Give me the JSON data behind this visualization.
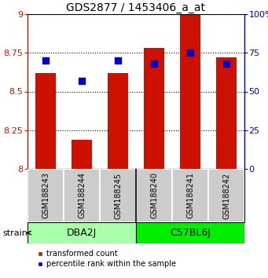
{
  "title": "GDS2877 / 1453406_a_at",
  "samples": [
    "GSM188243",
    "GSM188244",
    "GSM188245",
    "GSM188240",
    "GSM188241",
    "GSM188242"
  ],
  "transformed_counts": [
    8.62,
    8.19,
    8.62,
    8.78,
    9.0,
    8.72
  ],
  "percentile_ranks": [
    70,
    57,
    70,
    68,
    75,
    68
  ],
  "ylim_left": [
    8.0,
    9.0
  ],
  "ylim_right": [
    0,
    100
  ],
  "yticks_left": [
    8.0,
    8.25,
    8.5,
    8.75,
    9.0
  ],
  "yticks_right": [
    0,
    25,
    50,
    75,
    100
  ],
  "ytick_labels_left": [
    "8",
    "8.25",
    "8.5",
    "8.75",
    "9"
  ],
  "ytick_labels_right": [
    "0",
    "25",
    "50",
    "75",
    "100%"
  ],
  "groups": [
    {
      "name": "DBA2J",
      "indices": [
        0,
        1,
        2
      ],
      "color": "#AAFFAA"
    },
    {
      "name": "C57BL6J",
      "indices": [
        3,
        4,
        5
      ],
      "color": "#00EE00"
    }
  ],
  "bar_color": "#CC1100",
  "bar_width": 0.55,
  "percentile_color": "#0000CC",
  "percentile_marker_size": 30,
  "grid_color": "#000000",
  "bg_color": "#FFFFFF",
  "sample_box_color": "#CCCCCC",
  "left_axis_color": "#CC1100",
  "right_axis_color": "#0000BB",
  "legend_red_label": "transformed count",
  "legend_blue_label": "percentile rank within the sample",
  "strain_label": "strain",
  "title_fontsize": 10,
  "tick_fontsize": 8,
  "sample_fontsize": 7,
  "group_label_fontsize": 9
}
